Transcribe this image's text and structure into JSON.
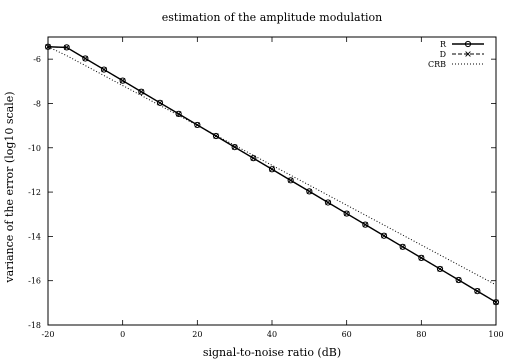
{
  "chart_data": {
    "type": "line",
    "title": "estimation of the amplitude modulation",
    "xlabel": "signal-to-noise ratio (dB)",
    "ylabel": "variance of the error (log10 scale)",
    "xlim": [
      -20,
      100
    ],
    "ylim": [
      -18,
      -5
    ],
    "xticks": [
      -20,
      0,
      20,
      40,
      60,
      80,
      100
    ],
    "yticks": [
      -18,
      -16,
      -14,
      -12,
      -10,
      -8,
      -6
    ],
    "grid": false,
    "legend_position": "top-right",
    "x": [
      -20,
      -15,
      -10,
      -5,
      0,
      5,
      10,
      15,
      20,
      25,
      30,
      35,
      40,
      45,
      50,
      55,
      60,
      65,
      70,
      75,
      80,
      85,
      90,
      95,
      100
    ],
    "series": [
      {
        "name": "R",
        "style": "solid",
        "marker": "circle",
        "values": [
          -5.44,
          -5.47,
          -5.97,
          -6.47,
          -6.97,
          -7.47,
          -7.97,
          -8.47,
          -8.97,
          -9.47,
          -9.97,
          -10.47,
          -10.97,
          -11.47,
          -11.97,
          -12.47,
          -12.97,
          -13.47,
          -13.97,
          -14.47,
          -14.97,
          -15.47,
          -15.97,
          -16.47,
          -16.97
        ]
      },
      {
        "name": "D",
        "style": "dashed",
        "marker": "cross",
        "values": [
          -5.44,
          -5.47,
          -5.97,
          -6.47,
          -6.97,
          -7.47,
          -7.97,
          -8.47,
          -8.97,
          -9.47,
          -9.97,
          -10.47,
          -10.97,
          -11.47,
          -11.97,
          -12.47,
          -12.97,
          -13.47,
          -13.97,
          -14.47,
          -14.97,
          -15.47,
          -15.97,
          -16.47,
          -16.97
        ]
      },
      {
        "name": "CRB",
        "style": "dotted",
        "marker": "none",
        "values": [
          -5.44,
          -5.84,
          -6.29,
          -6.74,
          -7.19,
          -7.64,
          -8.09,
          -8.54,
          -8.99,
          -9.44,
          -9.89,
          -10.34,
          -10.79,
          -11.24,
          -11.69,
          -12.14,
          -12.59,
          -13.04,
          -13.49,
          -13.94,
          -14.39,
          -14.84,
          -15.29,
          -15.74,
          -16.19
        ]
      }
    ]
  }
}
